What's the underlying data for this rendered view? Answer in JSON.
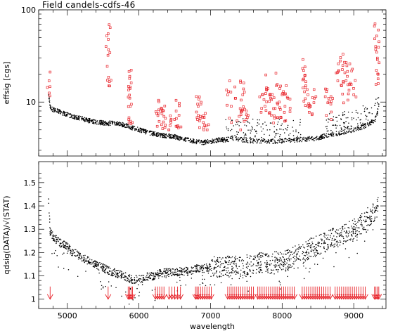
{
  "chart_data": [
    {
      "type": "scatter",
      "title": "Field candels-cdfs-46",
      "xlabel": "",
      "ylabel": "effsig [cgs]",
      "yscale": "log",
      "xlim": [
        4600,
        9450
      ],
      "ylim": [
        2.6,
        100
      ],
      "xticks": [
        5000,
        6000,
        7000,
        8000,
        9000
      ],
      "yticks": [
        10,
        100
      ],
      "ytick_labels": [
        "10",
        "100"
      ],
      "grid": false,
      "colors": {
        "main": "#000000",
        "outlier": "#e8232a"
      },
      "series": [
        {
          "style": "dots",
          "color": "#000000",
          "x": [
            4740,
            4760,
            4800,
            4900,
            5000,
            5100,
            5200,
            5300,
            5400,
            5500,
            5600,
            5700,
            5800,
            5900,
            6000,
            6100,
            6200,
            6300,
            6400,
            6500,
            6600,
            6700,
            6800,
            6900,
            7000,
            7100,
            7200,
            7300,
            7400,
            7500,
            7600,
            7700,
            7800,
            7900,
            8000,
            8100,
            8200,
            8300,
            8400,
            8500,
            8600,
            8700,
            8800,
            8900,
            9000,
            9100,
            9200,
            9250,
            9300,
            9330,
            9350
          ],
          "y": [
            12,
            8.8,
            8.3,
            7.8,
            7.3,
            6.9,
            6.6,
            6.3,
            6.1,
            5.95,
            5.9,
            5.8,
            5.6,
            5.3,
            5.0,
            4.75,
            4.55,
            4.4,
            4.3,
            4.2,
            4.0,
            3.85,
            3.7,
            3.65,
            3.75,
            3.85,
            3.9,
            4.0,
            3.95,
            3.85,
            3.8,
            3.8,
            3.75,
            3.75,
            3.8,
            3.85,
            3.9,
            3.95,
            4.0,
            4.05,
            4.3,
            4.5,
            4.6,
            4.8,
            5.0,
            5.3,
            5.7,
            6.0,
            6.5,
            7.5,
            9.5
          ]
        },
        {
          "style": "open-squares",
          "color": "#e8232a",
          "x": [
            4745,
            5570,
            5575,
            5580,
            5870,
            5875,
            5880,
            6250,
            6300,
            6350,
            6450,
            6520,
            6560,
            6820,
            6860,
            6900,
            6940,
            7250,
            7290,
            7350,
            7400,
            7450,
            7500,
            7720,
            7760,
            7800,
            7840,
            7880,
            7920,
            7960,
            8000,
            8040,
            8080,
            8300,
            8330,
            8360,
            8400,
            8450,
            8620,
            8650,
            8680,
            8790,
            8830,
            8870,
            8910,
            8950,
            9000,
            9320,
            9330,
            9340
          ],
          "y": [
            17,
            55,
            37,
            15,
            18,
            14,
            9,
            7.5,
            8,
            7,
            6.5,
            8,
            7.2,
            9.5,
            7,
            6,
            5.5,
            13,
            9,
            11,
            7,
            12,
            8,
            12,
            9,
            14,
            11,
            8.5,
            15,
            10,
            12,
            9,
            11,
            22,
            15,
            12,
            9,
            11,
            13,
            11,
            9.5,
            22,
            15,
            27,
            19,
            16,
            12,
            52,
            30,
            20
          ]
        }
      ]
    },
    {
      "type": "scatter",
      "title": "",
      "xlabel": "wavelength",
      "ylabel": "qdsig(DATA)/√(STAT)",
      "xlim": [
        4600,
        9450
      ],
      "ylim": [
        0.96,
        1.59
      ],
      "xticks": [
        5000,
        6000,
        7000,
        8000,
        9000
      ],
      "yticks": [
        1,
        1.1,
        1.2,
        1.3,
        1.4,
        1.5
      ],
      "ytick_labels": [
        "1",
        "1.1",
        "1.2",
        "1.3",
        "1.4",
        "1.5"
      ],
      "grid": false,
      "series": [
        {
          "style": "dots",
          "color": "#000000",
          "x": [
            4740,
            4760,
            4800,
            4900,
            5000,
            5100,
            5200,
            5300,
            5400,
            5500,
            5600,
            5700,
            5800,
            5900,
            6000,
            6100,
            6200,
            6300,
            6400,
            6500,
            6600,
            6700,
            6800,
            6900,
            7000,
            7100,
            7200,
            7300,
            7400,
            7500,
            7600,
            7700,
            7800,
            7900,
            8000,
            8100,
            8200,
            8300,
            8400,
            8500,
            8600,
            8700,
            8800,
            8900,
            9000,
            9100,
            9200,
            9300,
            9340
          ],
          "y": [
            1.43,
            1.29,
            1.27,
            1.24,
            1.225,
            1.2,
            1.18,
            1.165,
            1.145,
            1.135,
            1.12,
            1.11,
            1.1,
            1.085,
            1.085,
            1.095,
            1.1,
            1.11,
            1.115,
            1.115,
            1.12,
            1.12,
            1.13,
            1.13,
            1.14,
            1.14,
            1.14,
            1.14,
            1.14,
            1.15,
            1.15,
            1.16,
            1.15,
            1.16,
            1.16,
            1.17,
            1.19,
            1.2,
            1.22,
            1.23,
            1.24,
            1.26,
            1.27,
            1.29,
            1.3,
            1.32,
            1.35,
            1.38,
            1.4
          ]
        }
      ],
      "markers": {
        "style": "down-arrows",
        "color": "#e8232a",
        "y": 1.0,
        "x": [
          4760,
          5570,
          5850,
          5870,
          5890,
          5910,
          6230,
          6260,
          6290,
          6320,
          6350,
          6420,
          6460,
          6500,
          6540,
          6580,
          6790,
          6810,
          6830,
          6860,
          6890,
          6920,
          6950,
          6980,
          7010,
          7240,
          7270,
          7300,
          7330,
          7360,
          7390,
          7420,
          7450,
          7480,
          7510,
          7540,
          7570,
          7600,
          7660,
          7690,
          7720,
          7750,
          7780,
          7810,
          7840,
          7870,
          7900,
          7930,
          7960,
          7990,
          8020,
          8050,
          8080,
          8110,
          8140,
          8170,
          8280,
          8310,
          8340,
          8370,
          8400,
          8430,
          8460,
          8490,
          8520,
          8550,
          8580,
          8610,
          8640,
          8670,
          8740,
          8770,
          8800,
          8830,
          8860,
          8890,
          8920,
          8950,
          8980,
          9010,
          9040,
          9070,
          9100,
          9130,
          9160,
          9290,
          9310,
          9330,
          9350
        ]
      }
    }
  ]
}
